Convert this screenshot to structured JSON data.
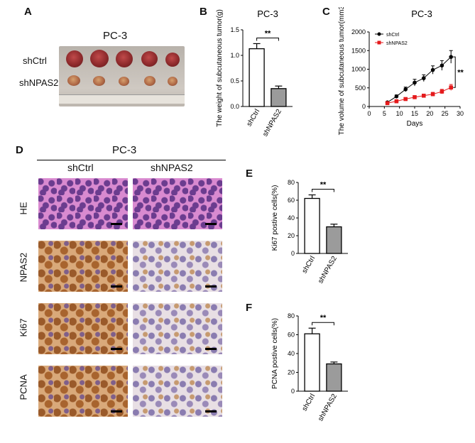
{
  "panels": {
    "A": {
      "letter": "A",
      "title": "PC-3",
      "rows": [
        "shCtrl",
        "shNPAS2"
      ]
    },
    "B": {
      "letter": "B"
    },
    "C": {
      "letter": "C"
    },
    "D": {
      "letter": "D",
      "title": "PC-3",
      "columns": [
        "shCtrl",
        "shNPAS2"
      ],
      "rows": [
        "HE",
        "NPAS2",
        "Ki67",
        "PCNA"
      ]
    },
    "E": {
      "letter": "E"
    },
    "F": {
      "letter": "F"
    }
  },
  "chart_data": [
    {
      "id": "B",
      "type": "bar",
      "title": "PC-3",
      "ylabel": "The weight of subcutaneous tumor(g)",
      "categories": [
        "shCtrl",
        "shNPAS2"
      ],
      "values": [
        1.13,
        0.35
      ],
      "errors": [
        0.1,
        0.05
      ],
      "ylim": [
        0,
        1.5
      ],
      "yticks": [
        "0.0",
        "0.5",
        "1.0",
        "1.5"
      ],
      "significance": "**",
      "colors": [
        "#ffffff",
        "#9b9b9b"
      ]
    },
    {
      "id": "C",
      "type": "line",
      "title": "PC-3",
      "xlabel": "Days",
      "ylabel": "The volume of subcutaneous tumor(mm3)",
      "xlim": [
        0,
        30
      ],
      "ylim": [
        0,
        2000
      ],
      "xticks": [
        "0",
        "5",
        "10",
        "15",
        "20",
        "25",
        "30"
      ],
      "yticks": [
        "0",
        "500",
        "1000",
        "1500",
        "2000"
      ],
      "significance": "**",
      "series": [
        {
          "name": "shCtrl",
          "color": "#000000",
          "x": [
            6,
            9,
            12,
            15,
            18,
            21,
            24,
            27
          ],
          "y": [
            110,
            270,
            460,
            640,
            760,
            980,
            1100,
            1330
          ],
          "err": [
            20,
            40,
            60,
            90,
            90,
            110,
            130,
            170
          ]
        },
        {
          "name": "shNPAS2",
          "color": "#e41a1c",
          "x": [
            6,
            9,
            12,
            15,
            18,
            21,
            24,
            27
          ],
          "y": [
            90,
            140,
            200,
            250,
            290,
            330,
            400,
            510
          ],
          "err": [
            15,
            25,
            30,
            40,
            40,
            50,
            60,
            80
          ]
        }
      ]
    },
    {
      "id": "E",
      "type": "bar",
      "ylabel": "Ki67 postive cells(%)",
      "categories": [
        "shCtrl",
        "shNPAS2"
      ],
      "values": [
        62,
        30
      ],
      "errors": [
        4,
        3
      ],
      "ylim": [
        0,
        80
      ],
      "yticks": [
        "0",
        "20",
        "40",
        "60",
        "80"
      ],
      "significance": "**",
      "colors": [
        "#ffffff",
        "#9b9b9b"
      ]
    },
    {
      "id": "F",
      "type": "bar",
      "ylabel": "PCNA postive cells(%)",
      "categories": [
        "shCtrl",
        "shNPAS2"
      ],
      "values": [
        61,
        29
      ],
      "errors": [
        6,
        2
      ],
      "ylim": [
        0,
        80
      ],
      "yticks": [
        "0",
        "20",
        "40",
        "60",
        "80"
      ],
      "significance": "**",
      "colors": [
        "#ffffff",
        "#9b9b9b"
      ]
    }
  ]
}
